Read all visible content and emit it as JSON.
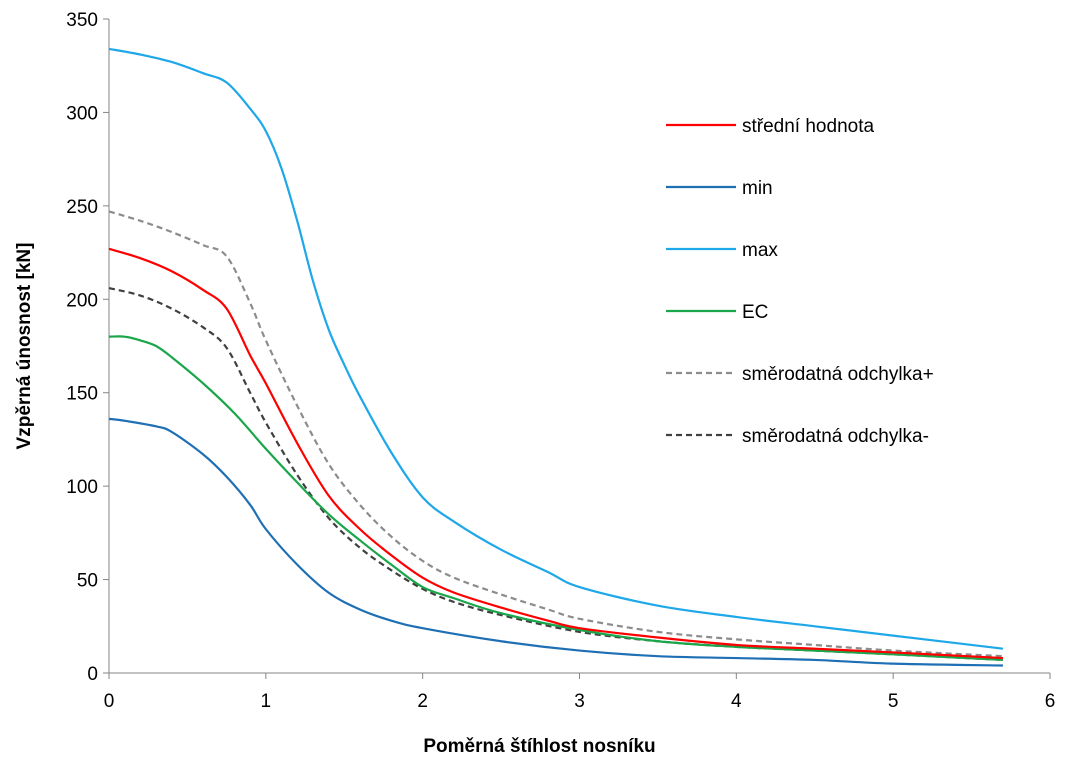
{
  "chart_data": {
    "type": "line",
    "title": "",
    "xlabel": "Poměrná štíhlost nosníku",
    "ylabel": "Vzpěrná únosnost [kN]",
    "xlim": [
      0,
      6
    ],
    "ylim": [
      0,
      350
    ],
    "xticks": [
      0,
      1,
      2,
      3,
      4,
      5,
      6
    ],
    "yticks": [
      0,
      50,
      100,
      150,
      200,
      250,
      300,
      350
    ],
    "grid": false,
    "legend_position": "right",
    "series": [
      {
        "name": "střední hodnota",
        "color": "#ff0000",
        "dash": "solid",
        "x": [
          0,
          0.2,
          0.4,
          0.6,
          0.75,
          0.9,
          1.0,
          1.2,
          1.4,
          1.6,
          1.8,
          2.0,
          2.2,
          2.5,
          2.8,
          3.0,
          3.5,
          4.0,
          4.5,
          5.0,
          5.7
        ],
        "y": [
          227,
          222,
          215,
          205,
          195,
          170,
          155,
          123,
          95,
          77,
          63,
          51,
          43,
          35,
          28,
          24,
          19,
          15,
          13,
          11,
          8
        ]
      },
      {
        "name": "min",
        "color": "#1f6fb5",
        "dash": "solid",
        "x": [
          0,
          0.1,
          0.3,
          0.4,
          0.6,
          0.75,
          0.9,
          1.0,
          1.2,
          1.4,
          1.6,
          1.8,
          2.0,
          2.5,
          3.0,
          3.5,
          4.0,
          4.5,
          5.0,
          5.7
        ],
        "y": [
          136,
          135,
          132,
          129,
          117,
          105,
          90,
          77,
          58,
          43,
          34,
          28,
          24,
          17,
          12,
          9,
          8,
          7,
          5,
          4
        ]
      },
      {
        "name": "max",
        "color": "#1ea7e9",
        "dash": "solid",
        "x": [
          0,
          0.2,
          0.4,
          0.6,
          0.75,
          0.9,
          1.0,
          1.1,
          1.2,
          1.3,
          1.4,
          1.5,
          1.6,
          1.8,
          2.0,
          2.2,
          2.5,
          2.8,
          3.0,
          3.5,
          4.0,
          4.5,
          5.0,
          5.7
        ],
        "y": [
          334,
          331,
          327,
          321,
          316,
          302,
          290,
          270,
          242,
          210,
          184,
          165,
          148,
          118,
          94,
          81,
          66,
          54,
          46,
          36,
          30,
          25,
          20,
          13
        ]
      },
      {
        "name": "EC",
        "color": "#1aa64a",
        "dash": "solid",
        "x": [
          0,
          0.1,
          0.2,
          0.3,
          0.4,
          0.6,
          0.8,
          1.0,
          1.2,
          1.4,
          1.6,
          1.8,
          2.0,
          2.2,
          2.5,
          3.0,
          3.5,
          4.0,
          4.5,
          5.0,
          5.7
        ],
        "y": [
          180,
          180,
          178,
          175,
          169,
          155,
          139,
          120,
          102,
          85,
          71,
          58,
          46,
          40,
          32,
          23,
          17,
          14,
          12,
          10,
          7
        ]
      },
      {
        "name": "směrodatná odchylka+",
        "color": "#8c8c8c",
        "dash": "dashed",
        "x": [
          0,
          0.2,
          0.4,
          0.6,
          0.75,
          0.9,
          1.0,
          1.2,
          1.4,
          1.6,
          1.8,
          2.0,
          2.2,
          2.5,
          2.8,
          3.0,
          3.5,
          4.0,
          4.5,
          5.0,
          5.7
        ],
        "y": [
          247,
          242,
          236,
          229,
          223,
          198,
          178,
          143,
          112,
          90,
          73,
          60,
          51,
          42,
          34,
          29,
          22,
          18,
          15,
          12,
          9
        ]
      },
      {
        "name": "směrodatná odchylka-",
        "color": "#404040",
        "dash": "dashed",
        "x": [
          0,
          0.2,
          0.4,
          0.6,
          0.75,
          0.9,
          1.0,
          1.2,
          1.4,
          1.6,
          1.8,
          2.0,
          2.2,
          2.5,
          3.0,
          3.5,
          4.0,
          4.5,
          5.0,
          5.7
        ],
        "y": [
          206,
          202,
          195,
          185,
          174,
          150,
          134,
          106,
          83,
          67,
          55,
          45,
          38,
          31,
          22,
          17,
          14,
          12,
          10,
          7
        ]
      }
    ]
  }
}
